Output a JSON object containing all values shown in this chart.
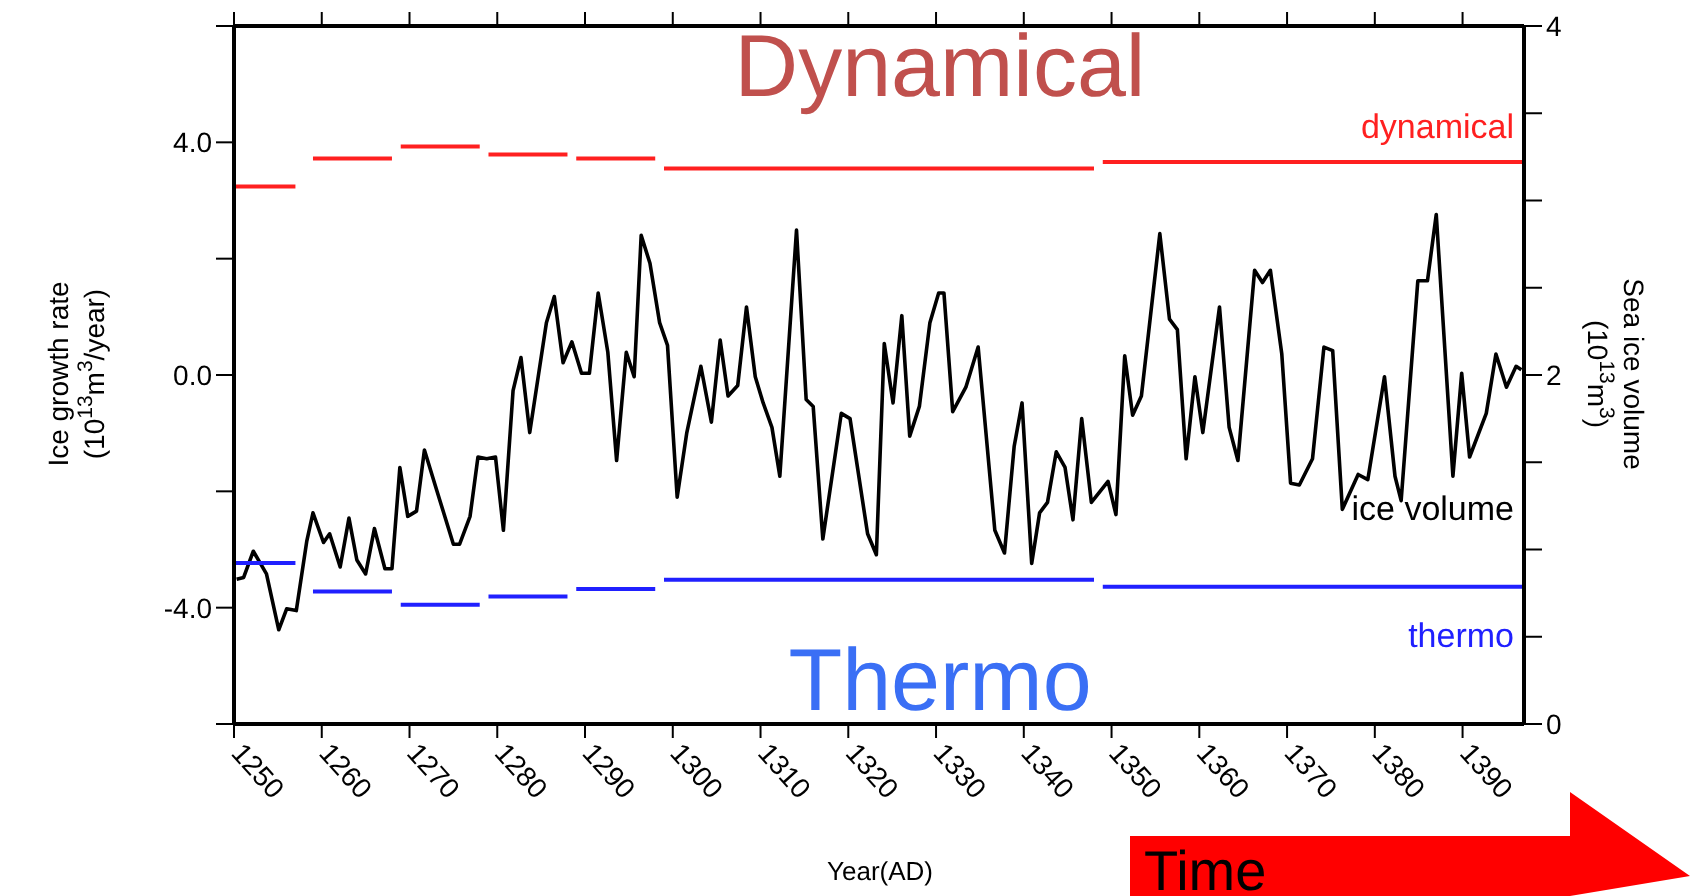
{
  "chart_data": {
    "type": "line",
    "xlabel": "Year(AD)",
    "ylabel": "Ice growth rate\n(10$^{13}$m$^{3}$/year)",
    "y2label": "Sea ice volume\n(10$^{13}$m$^{3}$)",
    "xlim": [
      1250,
      1397
    ],
    "xticks": [
      1250,
      1260,
      1270,
      1280,
      1290,
      1300,
      1310,
      1320,
      1330,
      1340,
      1350,
      1360,
      1370,
      1380,
      1390
    ],
    "ylim": [
      -6,
      6
    ],
    "yticks": [
      {
        "value": -6,
        "label": null
      },
      {
        "value": -4,
        "label": "-4.0"
      },
      {
        "value": -2,
        "label": null
      },
      {
        "value": 0,
        "label": "0.0"
      },
      {
        "value": 2,
        "label": null
      },
      {
        "value": 4,
        "label": "4.0"
      },
      {
        "value": 6,
        "label": null
      }
    ],
    "y2lim": [
      0,
      4
    ],
    "y2ticks": [
      0,
      {
        "value": 0.5,
        "label": null
      },
      {
        "value": 1,
        "label": null
      },
      {
        "value": 1.5,
        "label": null
      },
      2,
      {
        "value": 2.5,
        "label": null
      },
      {
        "value": 3,
        "label": null
      },
      {
        "value": 3.5,
        "label": null
      },
      4
    ],
    "annotations": [
      "Dynamical",
      "Thermo",
      "Time"
    ],
    "series": [
      {
        "name": "dynamical",
        "color": "#ff2020",
        "x": [
          1250,
          1257,
          1258,
          1259,
          1268,
          1268.5,
          1269,
          1278,
          1278.5,
          1279,
          1288,
          1288.5,
          1289,
          1298,
          1298.5,
          1299,
          1348,
          1348.5,
          1349,
          1397
        ],
        "values": [
          3.24,
          3.24,
          null,
          3.72,
          3.72,
          null,
          3.93,
          3.93,
          null,
          3.79,
          3.79,
          null,
          3.72,
          3.72,
          null,
          3.55,
          3.55,
          null,
          3.66,
          3.66
        ]
      },
      {
        "name": "ice volume",
        "color": "#000000",
        "axis": "y2",
        "x": [
          1250.3,
          1251.1,
          1252.2,
          1253.7,
          1255.1,
          1256.0,
          1257.1,
          1258.3,
          1259.0,
          1260.2,
          1260.9,
          1262.1,
          1263.1,
          1264.0,
          1265.0,
          1266.0,
          1267.2,
          1268.0,
          1268.9,
          1269.8,
          1270.8,
          1271.7,
          1273.1,
          1275.0,
          1275.7,
          1276.9,
          1277.8,
          1278.8,
          1279.8,
          1280.7,
          1281.8,
          1282.7,
          1283.7,
          1285.6,
          1286.5,
          1287.5,
          1288.5,
          1289.6,
          1290.5,
          1291.5,
          1292.6,
          1293.6,
          1294.7,
          1295.6,
          1296.4,
          1297.4,
          1298.5,
          1299.4,
          1300.5,
          1301.6,
          1303.2,
          1304.4,
          1305.4,
          1306.3,
          1307.4,
          1308.4,
          1309.4,
          1310.3,
          1311.3,
          1312.2,
          1314.1,
          1315.2,
          1316.0,
          1317.1,
          1319.2,
          1320.2,
          1322.2,
          1323.2,
          1324.1,
          1325.1,
          1326.1,
          1327.0,
          1328.1,
          1329.3,
          1330.3,
          1330.9,
          1331.9,
          1333.4,
          1334.8,
          1336.7,
          1337.8,
          1338.9,
          1339.8,
          1340.9,
          1341.8,
          1342.7,
          1343.7,
          1344.7,
          1345.6,
          1346.6,
          1347.7,
          1349.6,
          1350.5,
          1351.5,
          1352.4,
          1353.4,
          1355.5,
          1356.6,
          1357.5,
          1358.5,
          1359.5,
          1360.4,
          1362.3,
          1363.4,
          1364.4,
          1366.3,
          1367.2,
          1368.1,
          1369.4,
          1370.4,
          1371.4,
          1372.9,
          1374.2,
          1375.2,
          1376.3,
          1378.1,
          1379.2,
          1381.1,
          1382.3,
          1383.0,
          1384.9,
          1386.0,
          1387.0,
          1388.9,
          1389.9,
          1390.8,
          1392.7,
          1393.8,
          1395.0,
          1396.1,
          1396.7
        ],
        "values": [
          0.83,
          0.84,
          0.99,
          0.86,
          0.54,
          0.66,
          0.65,
          1.05,
          1.21,
          1.04,
          1.09,
          0.9,
          1.18,
          0.94,
          0.86,
          1.12,
          0.89,
          0.89,
          1.47,
          1.19,
          1.22,
          1.57,
          1.34,
          1.03,
          1.03,
          1.19,
          1.53,
          1.52,
          1.53,
          1.11,
          1.91,
          2.1,
          1.67,
          2.3,
          2.45,
          2.07,
          2.19,
          2.01,
          2.01,
          2.47,
          2.13,
          1.51,
          2.13,
          1.99,
          2.8,
          2.64,
          2.3,
          2.17,
          1.3,
          1.67,
          2.05,
          1.73,
          2.2,
          1.88,
          1.94,
          2.39,
          1.99,
          1.84,
          1.7,
          1.42,
          2.83,
          1.86,
          1.82,
          1.06,
          1.78,
          1.75,
          1.09,
          0.97,
          2.18,
          1.84,
          2.34,
          1.65,
          1.82,
          2.3,
          2.47,
          2.47,
          1.79,
          1.93,
          2.16,
          1.11,
          0.98,
          1.59,
          1.84,
          0.92,
          1.21,
          1.27,
          1.56,
          1.47,
          1.17,
          1.75,
          1.27,
          1.39,
          1.2,
          2.11,
          1.77,
          1.88,
          2.81,
          2.32,
          2.26,
          1.52,
          1.99,
          1.67,
          2.39,
          1.7,
          1.51,
          2.6,
          2.53,
          2.6,
          2.12,
          1.38,
          1.37,
          1.52,
          2.16,
          2.14,
          1.23,
          1.43,
          1.4,
          1.99,
          1.42,
          1.28,
          2.54,
          2.54,
          2.92,
          1.42,
          2.01,
          1.53,
          1.78,
          2.12,
          1.93,
          2.05,
          2.03
        ]
      },
      {
        "name": "thermo",
        "color": "#2020ff",
        "x": [
          1250,
          1257,
          1258,
          1259,
          1268,
          1268.5,
          1269,
          1278,
          1278.5,
          1279,
          1288,
          1288.5,
          1289,
          1298,
          1298.5,
          1299,
          1348,
          1348.5,
          1349,
          1397
        ],
        "values": [
          -3.23,
          -3.23,
          null,
          -3.72,
          -3.72,
          null,
          -3.95,
          -3.95,
          null,
          -3.81,
          -3.81,
          null,
          -3.68,
          -3.68,
          null,
          -3.52,
          -3.52,
          null,
          -3.64,
          -3.64
        ]
      }
    ]
  }
}
